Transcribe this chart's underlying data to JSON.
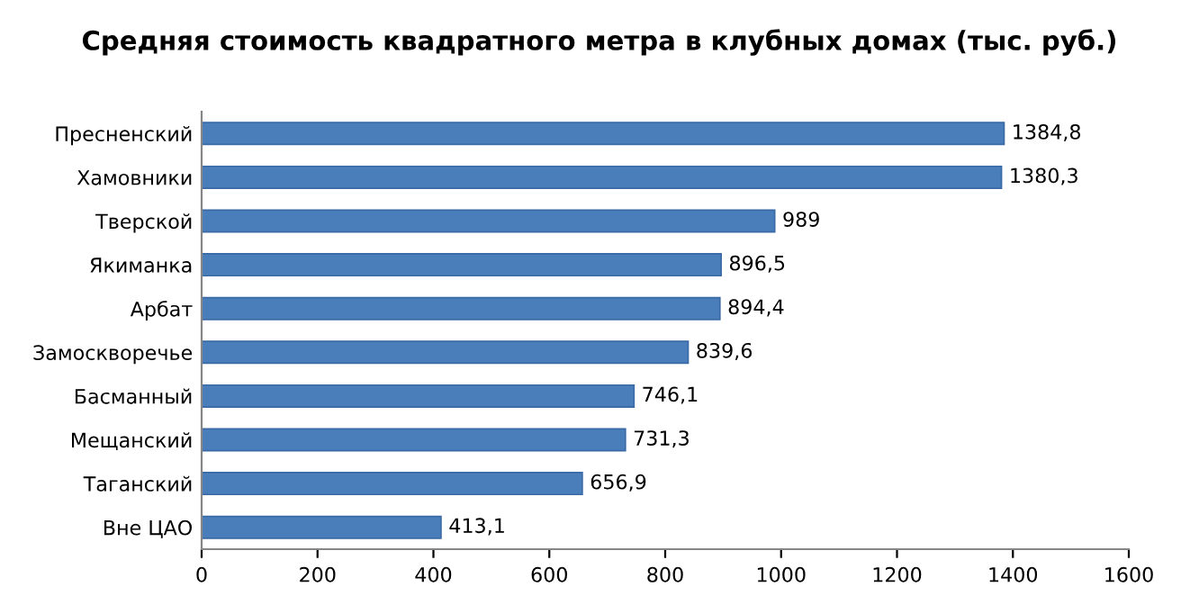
{
  "chart_data": {
    "type": "bar",
    "orientation": "horizontal",
    "title": "Средняя стоимость квадратного метра в клубных домах (тыс. руб.)",
    "categories": [
      "Пресненский",
      "Хамовники",
      "Тверской",
      "Якиманка",
      "Арбат",
      "Замоскворечье",
      "Басманный",
      "Мещанский",
      "Таганский",
      "Вне ЦАО"
    ],
    "values": [
      1384.8,
      1380.3,
      989,
      896.5,
      894.4,
      839.6,
      746.1,
      731.3,
      656.9,
      413.1
    ],
    "value_labels": [
      "1384,8",
      "1380,3",
      "989",
      "896,5",
      "894,4",
      "839,6",
      "746,1",
      "731,3",
      "656,9",
      "413,1"
    ],
    "color": "#4a7ebb",
    "xlim": [
      0,
      1600
    ],
    "xticks": [
      0,
      200,
      400,
      600,
      800,
      1000,
      1200,
      1400,
      1600
    ],
    "grid": false,
    "legend": false
  }
}
